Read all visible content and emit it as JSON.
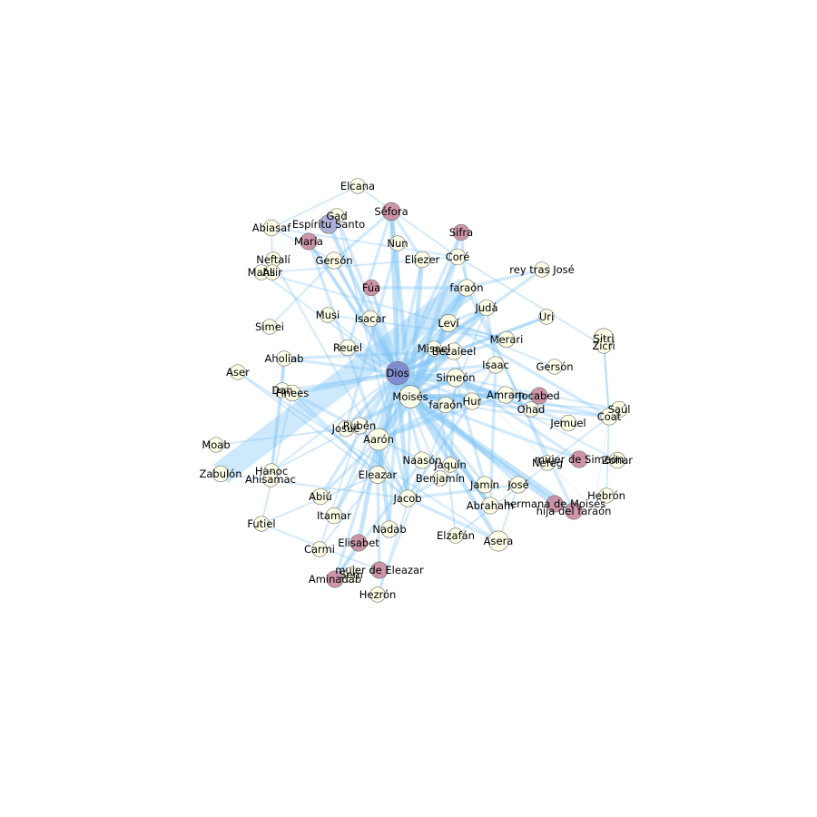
{
  "colors": {
    "edge": "#7dc4f5",
    "female": "#c98a9e",
    "male": "#fefee6",
    "divine": "#7f85cc",
    "spirit": "#a9aad6"
  },
  "nodes": [
    {
      "id": "Dios",
      "label": "Dios",
      "type": "divine",
      "weight": 18
    },
    {
      "id": "Moises",
      "label": "Moisés",
      "type": "male",
      "weight": 16
    },
    {
      "id": "Aaron",
      "label": "Aarón",
      "type": "male",
      "weight": 14
    },
    {
      "id": "Elcana",
      "label": "Elcana",
      "type": "male",
      "weight": 2
    },
    {
      "id": "Sefora",
      "label": "Séfora",
      "type": "female",
      "weight": 6
    },
    {
      "id": "Gad",
      "label": "Gad",
      "type": "male",
      "weight": 2
    },
    {
      "id": "EspirituSanto",
      "label": "Espíritu Santo",
      "type": "spirit",
      "weight": 7
    },
    {
      "id": "Abiasaf",
      "label": "Abiasaf",
      "type": "male",
      "weight": 3
    },
    {
      "id": "Maria",
      "label": "María",
      "type": "female",
      "weight": 4
    },
    {
      "id": "Nun",
      "label": "Nun",
      "type": "male",
      "weight": 2
    },
    {
      "id": "Sifra",
      "label": "Sifra",
      "type": "female",
      "weight": 3
    },
    {
      "id": "Neftali",
      "label": "Neftalí",
      "type": "male",
      "weight": 2
    },
    {
      "id": "Gerson1",
      "label": "Gersón",
      "type": "male",
      "weight": 4
    },
    {
      "id": "Eliezer",
      "label": "Eliezer",
      "type": "male",
      "weight": 3
    },
    {
      "id": "Core",
      "label": "Coré",
      "type": "male",
      "weight": 3
    },
    {
      "id": "reyJose",
      "label": "rey tras José",
      "type": "male",
      "weight": 2
    },
    {
      "id": "Mahli",
      "label": "Mahli",
      "type": "male",
      "weight": 2
    },
    {
      "id": "Asir",
      "label": "Asir",
      "type": "male",
      "weight": 2
    },
    {
      "id": "Fua",
      "label": "Fúa",
      "type": "female",
      "weight": 3
    },
    {
      "id": "farao1",
      "label": "faraón",
      "type": "male",
      "weight": 4
    },
    {
      "id": "Juda",
      "label": "Judá",
      "type": "male",
      "weight": 3
    },
    {
      "id": "Uri",
      "label": "Uri",
      "type": "male",
      "weight": 2
    },
    {
      "id": "Simei",
      "label": "Simei",
      "type": "male",
      "weight": 2
    },
    {
      "id": "Musi",
      "label": "Musi",
      "type": "male",
      "weight": 2
    },
    {
      "id": "Isacar",
      "label": "Isacar",
      "type": "male",
      "weight": 3
    },
    {
      "id": "Levi",
      "label": "Leví",
      "type": "male",
      "weight": 5
    },
    {
      "id": "Sitri",
      "label": "Sitri",
      "type": "male",
      "weight": 10
    },
    {
      "id": "Zicri",
      "label": "Zicri",
      "type": "male",
      "weight": 2
    },
    {
      "id": "Merari",
      "label": "Merari",
      "type": "male",
      "weight": 3
    },
    {
      "id": "Reuel",
      "label": "Reuel",
      "type": "male",
      "weight": 3
    },
    {
      "id": "Misael",
      "label": "Misael",
      "type": "male",
      "weight": 2
    },
    {
      "id": "Bezaleel",
      "label": "Bezaleel",
      "type": "male",
      "weight": 4
    },
    {
      "id": "Aholiab",
      "label": "Aholiab",
      "type": "male",
      "weight": 2
    },
    {
      "id": "Isaac",
      "label": "Isaac",
      "type": "male",
      "weight": 4
    },
    {
      "id": "Gerson2",
      "label": "Gersón",
      "type": "male",
      "weight": 2
    },
    {
      "id": "Aser",
      "label": "Aser",
      "type": "male",
      "weight": 2
    },
    {
      "id": "Simeon",
      "label": "Simeón",
      "type": "male",
      "weight": 6
    },
    {
      "id": "Dan",
      "label": "Dan",
      "type": "male",
      "weight": 2
    },
    {
      "id": "Finees",
      "label": "Finees",
      "type": "male",
      "weight": 3
    },
    {
      "id": "Amram",
      "label": "Amram",
      "type": "male",
      "weight": 4
    },
    {
      "id": "Jocabed",
      "label": "Jocabed",
      "type": "female",
      "weight": 4
    },
    {
      "id": "Hur",
      "label": "Hur",
      "type": "male",
      "weight": 4
    },
    {
      "id": "farao2",
      "label": "faraón",
      "type": "male",
      "weight": 3
    },
    {
      "id": "Saul",
      "label": "Saúl",
      "type": "male",
      "weight": 3
    },
    {
      "id": "Coat",
      "label": "Coat",
      "type": "male",
      "weight": 4
    },
    {
      "id": "Ohad",
      "label": "Ohad",
      "type": "male",
      "weight": 2
    },
    {
      "id": "Jemuel",
      "label": "Jemuel",
      "type": "male",
      "weight": 3
    },
    {
      "id": "Ruben",
      "label": "Rubén",
      "type": "male",
      "weight": 4
    },
    {
      "id": "Josue",
      "label": "Josué",
      "type": "male",
      "weight": 3
    },
    {
      "id": "Moab",
      "label": "Moab",
      "type": "male",
      "weight": 2
    },
    {
      "id": "mujerSimeon",
      "label": "mujer de Simeón",
      "type": "female",
      "weight": 4
    },
    {
      "id": "Zohar",
      "label": "Zohar",
      "type": "male",
      "weight": 3
    },
    {
      "id": "Naason",
      "label": "Naasón",
      "type": "male",
      "weight": 4
    },
    {
      "id": "Jaquin",
      "label": "Jaquín",
      "type": "male",
      "weight": 2
    },
    {
      "id": "Nefeg",
      "label": "Nefeg",
      "type": "male",
      "weight": 2
    },
    {
      "id": "Hanoc",
      "label": "Hanoc",
      "type": "male",
      "weight": 2
    },
    {
      "id": "Zabulon",
      "label": "Zabulón",
      "type": "male",
      "weight": 3
    },
    {
      "id": "Ahisamac",
      "label": "Ahisamac",
      "type": "male",
      "weight": 2
    },
    {
      "id": "Eleazar",
      "label": "Eleazar",
      "type": "male",
      "weight": 5
    },
    {
      "id": "Benjamin",
      "label": "Benjamín",
      "type": "male",
      "weight": 2
    },
    {
      "id": "Jamin",
      "label": "Jamín",
      "type": "male",
      "weight": 4
    },
    {
      "id": "Jose",
      "label": "José",
      "type": "male",
      "weight": 4
    },
    {
      "id": "Abiu",
      "label": "Abiú",
      "type": "male",
      "weight": 3
    },
    {
      "id": "Jacob",
      "label": "Jacob",
      "type": "male",
      "weight": 4
    },
    {
      "id": "Abraham",
      "label": "Abraham",
      "type": "male",
      "weight": 4
    },
    {
      "id": "hermanaMoises",
      "label": "hermana de Moisés",
      "type": "female",
      "weight": 4
    },
    {
      "id": "Hebron",
      "label": "Hebrón",
      "type": "male",
      "weight": 2
    },
    {
      "id": "hijaFarao",
      "label": "hija del faraón",
      "type": "female",
      "weight": 4
    },
    {
      "id": "Itamar",
      "label": "Itamar",
      "type": "male",
      "weight": 3
    },
    {
      "id": "Futiel",
      "label": "Futiel",
      "type": "male",
      "weight": 2
    },
    {
      "id": "Nadab",
      "label": "Nadab",
      "type": "male",
      "weight": 4
    },
    {
      "id": "Elzafan",
      "label": "Elzafán",
      "type": "male",
      "weight": 2
    },
    {
      "id": "Asera",
      "label": "Asera",
      "type": "male",
      "weight": 10
    },
    {
      "id": "Carmi",
      "label": "Carmi",
      "type": "male",
      "weight": 2
    },
    {
      "id": "Elisabet",
      "label": "Elisabet",
      "type": "female",
      "weight": 4
    },
    {
      "id": "mujerEleazar",
      "label": "mujer de Eleazar",
      "type": "female",
      "weight": 4
    },
    {
      "id": "Sem",
      "label": "Sem",
      "type": "male",
      "weight": 2
    },
    {
      "id": "Aminadab",
      "label": "Aminadab",
      "type": "female",
      "weight": 4
    },
    {
      "id": "Hezron",
      "label": "Hezrón",
      "type": "male",
      "weight": 2
    }
  ],
  "edges": [
    [
      "Zabulon",
      "farao1",
      12
    ],
    [
      "Dios",
      "Moises",
      8
    ],
    [
      "Dios",
      "Aaron",
      6
    ],
    [
      "Moises",
      "Aaron",
      6
    ],
    [
      "Dios",
      "Sefora",
      3
    ],
    [
      "Dios",
      "Gad",
      2
    ],
    [
      "Dios",
      "EspirituSanto",
      3
    ],
    [
      "Dios",
      "Maria",
      2
    ],
    [
      "Dios",
      "Nun",
      2
    ],
    [
      "Dios",
      "Sifra",
      2
    ],
    [
      "Dios",
      "Eliezer",
      2
    ],
    [
      "Dios",
      "Core",
      2
    ],
    [
      "Dios",
      "reyJose",
      2
    ],
    [
      "Dios",
      "Fua",
      2
    ],
    [
      "Dios",
      "farao1",
      4
    ],
    [
      "Dios",
      "Juda",
      3
    ],
    [
      "Dios",
      "Uri",
      2
    ],
    [
      "Dios",
      "Isacar",
      2
    ],
    [
      "Dios",
      "Levi",
      3
    ],
    [
      "Dios",
      "Merari",
      2
    ],
    [
      "Dios",
      "Reuel",
      2
    ],
    [
      "Dios",
      "Bezaleel",
      3
    ],
    [
      "Dios",
      "Aholiab",
      2
    ],
    [
      "Dios",
      "Isaac",
      2
    ],
    [
      "Dios",
      "Simeon",
      3
    ],
    [
      "Dios",
      "Finees",
      3
    ],
    [
      "Dios",
      "Amram",
      3
    ],
    [
      "Dios",
      "Hur",
      2
    ],
    [
      "Dios",
      "farao2",
      2
    ],
    [
      "Dios",
      "Ruben",
      2
    ],
    [
      "Dios",
      "Josue",
      3
    ],
    [
      "Dios",
      "Eleazar",
      3
    ],
    [
      "Dios",
      "Jacob",
      3
    ],
    [
      "Dios",
      "Abraham",
      3
    ],
    [
      "Dios",
      "Naason",
      2
    ],
    [
      "Dios",
      "Nadab",
      2
    ],
    [
      "Dios",
      "Abiu",
      2
    ],
    [
      "Dios",
      "Itamar",
      2
    ],
    [
      "Dios",
      "Jamin",
      2
    ],
    [
      "Dios",
      "Jose",
      2
    ],
    [
      "Dios",
      "Benjamin",
      1
    ],
    [
      "Dios",
      "Hanoc",
      1
    ],
    [
      "Dios",
      "Dan",
      1
    ],
    [
      "Dios",
      "Gerson1",
      2
    ],
    [
      "Dios",
      "Musi",
      1
    ],
    [
      "Dios",
      "Mahli",
      1
    ],
    [
      "Moises",
      "Sefora",
      3
    ],
    [
      "Moises",
      "Maria",
      2
    ],
    [
      "Moises",
      "Eliezer",
      3
    ],
    [
      "Moises",
      "farao1",
      5
    ],
    [
      "Moises",
      "Juda",
      3
    ],
    [
      "Moises",
      "Levi",
      3
    ],
    [
      "Moises",
      "Amram",
      3
    ],
    [
      "Moises",
      "Jocabed",
      3
    ],
    [
      "Moises",
      "Hur",
      2
    ],
    [
      "Moises",
      "Josue",
      3
    ],
    [
      "Moises",
      "Eleazar",
      2
    ],
    [
      "Moises",
      "Jacob",
      2
    ],
    [
      "Moises",
      "Abraham",
      3
    ],
    [
      "Moises",
      "hermanaMoises",
      4
    ],
    [
      "Moises",
      "hijaFarao",
      4
    ],
    [
      "Moises",
      "Reuel",
      2
    ],
    [
      "Moises",
      "Gerson1",
      2
    ],
    [
      "Moises",
      "Core",
      2
    ],
    [
      "Moises",
      "Simeon",
      3
    ],
    [
      "Moises",
      "Isaac",
      2
    ],
    [
      "Moises",
      "Coat",
      2
    ],
    [
      "Moises",
      "Saul",
      1
    ],
    [
      "Moises",
      "Jemuel",
      1
    ],
    [
      "Moises",
      "mujerSimeon",
      2
    ],
    [
      "Moises",
      "Bezaleel",
      2
    ],
    [
      "Moises",
      "Sifra",
      2
    ],
    [
      "Moises",
      "Fua",
      1
    ],
    [
      "Moises",
      "Asera",
      3
    ],
    [
      "Aaron",
      "Eleazar",
      3
    ],
    [
      "Aaron",
      "Nadab",
      3
    ],
    [
      "Aaron",
      "Abiu",
      2
    ],
    [
      "Aaron",
      "Itamar",
      2
    ],
    [
      "Aaron",
      "Elisabet",
      3
    ],
    [
      "Aaron",
      "Aminadab",
      2
    ],
    [
      "Aaron",
      "Naason",
      2
    ],
    [
      "Aaron",
      "Finees",
      2
    ],
    [
      "Aaron",
      "Hur",
      2
    ],
    [
      "Aaron",
      "Maria",
      2
    ],
    [
      "Aaron",
      "farao2",
      2
    ],
    [
      "Aaron",
      "Levi",
      2
    ],
    [
      "Aaron",
      "Amram",
      2
    ],
    [
      "Aaron",
      "Josue",
      1
    ],
    [
      "Eleazar",
      "mujerEleazar",
      2
    ],
    [
      "Eleazar",
      "Finees",
      2
    ],
    [
      "Eleazar",
      "Futiel",
      1
    ],
    [
      "Eleazar",
      "Carmi",
      1
    ],
    [
      "mujerEleazar",
      "Futiel",
      1
    ],
    [
      "Finees",
      "Futiel",
      1
    ],
    [
      "Aminadab",
      "Naason",
      2
    ],
    [
      "Aminadab",
      "Elisabet",
      2
    ],
    [
      "Naason",
      "Hezron",
      1
    ],
    [
      "Hezron",
      "Juda",
      1
    ],
    [
      "Juda",
      "Levi",
      2
    ],
    [
      "Juda",
      "Isaac",
      2
    ],
    [
      "Levi",
      "Merari",
      2
    ],
    [
      "Levi",
      "Coat",
      2
    ],
    [
      "Levi",
      "Gerson2",
      1
    ],
    [
      "Coat",
      "Amram",
      2
    ],
    [
      "Coat",
      "Hebron",
      1
    ],
    [
      "Coat",
      "Uziel",
      0
    ],
    [
      "Amram",
      "Jocabed",
      2
    ],
    [
      "Coat",
      "Zicri",
      1
    ],
    [
      "Sitri",
      "Zicri",
      1
    ],
    [
      "Sitri",
      "Coat",
      1
    ],
    [
      "Merari",
      "Mahli",
      1
    ],
    [
      "Merari",
      "Musi",
      1
    ],
    [
      "Gerson1",
      "Simei",
      1
    ],
    [
      "Gerson1",
      "Abiasaf",
      1
    ],
    [
      "Core",
      "Abiasaf",
      1
    ],
    [
      "Core",
      "Elcana",
      1
    ],
    [
      "Core",
      "Asir",
      1
    ],
    [
      "Core",
      "Nefeg",
      1
    ],
    [
      "Core",
      "Zicri",
      1
    ],
    [
      "Elcana",
      "Abiasaf",
      1
    ],
    [
      "Asir",
      "Abiasaf",
      1
    ],
    [
      "Simeon",
      "Jemuel",
      2
    ],
    [
      "Simeon",
      "Jamin",
      2
    ],
    [
      "Simeon",
      "Ohad",
      1
    ],
    [
      "Simeon",
      "Jaquin",
      2
    ],
    [
      "Simeon",
      "Zohar",
      1
    ],
    [
      "Simeon",
      "Saul",
      1
    ],
    [
      "Simeon",
      "mujerSimeon",
      2
    ],
    [
      "Ruben",
      "Hanoc",
      1
    ],
    [
      "Ruben",
      "Carmi",
      1
    ],
    [
      "Ruben",
      "Jacob",
      2
    ],
    [
      "Jacob",
      "Isaac",
      2
    ],
    [
      "Isaac",
      "Abraham",
      2
    ],
    [
      "Jacob",
      "Jose",
      2
    ],
    [
      "Jacob",
      "Benjamin",
      2
    ],
    [
      "Jacob",
      "Dan",
      1
    ],
    [
      "Jacob",
      "Aser",
      1
    ],
    [
      "Jacob",
      "Zabulon",
      1
    ],
    [
      "Jacob",
      "Neftali",
      1
    ],
    [
      "Jacob",
      "Gad",
      1
    ],
    [
      "Jacob",
      "Isacar",
      1
    ],
    [
      "Jacob",
      "Asera",
      2
    ],
    [
      "Bezaleel",
      "Uri",
      2
    ],
    [
      "Bezaleel",
      "Hur",
      2
    ],
    [
      "Bezaleel",
      "Aholiab",
      2
    ],
    [
      "Aholiab",
      "Ahisamac",
      2
    ],
    [
      "Aholiab",
      "Dan",
      2
    ],
    [
      "Ahisamac",
      "Dan",
      1
    ],
    [
      "Josue",
      "Nun",
      2
    ],
    [
      "Josue",
      "Moab",
      1
    ],
    [
      "farao1",
      "Sifra",
      2
    ],
    [
      "farao1",
      "Fua",
      2
    ],
    [
      "farao1",
      "reyJose",
      2
    ],
    [
      "farao1",
      "hijaFarao",
      2
    ],
    [
      "Sefora",
      "Reuel",
      2
    ],
    [
      "Sefora",
      "Eliezer",
      2
    ],
    [
      "Sefora",
      "Gerson1",
      2
    ],
    [
      "Misael",
      "Elzafan",
      1
    ],
    [
      "Misael",
      "Uziel",
      0
    ],
    [
      "Elzafan",
      "Coat",
      1
    ],
    [
      "Asera",
      "Aser",
      1
    ],
    [
      "Asera",
      "Jose",
      1
    ]
  ]
}
